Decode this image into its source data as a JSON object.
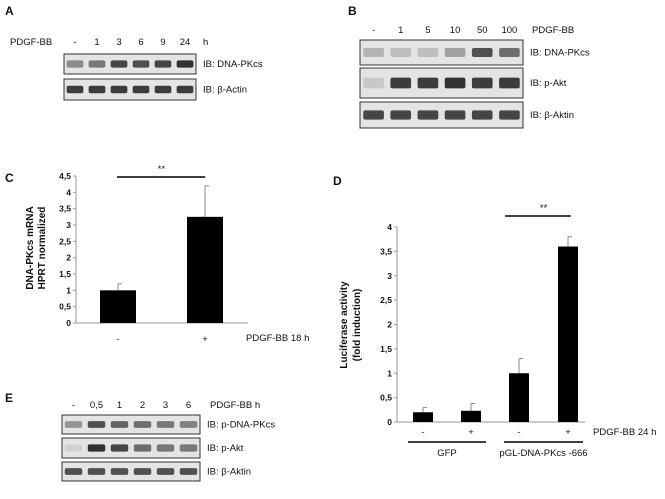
{
  "panels": {
    "A": {
      "label": "A",
      "treatment": "PDGF-BB",
      "unit": "h",
      "lanes": [
        "-",
        "1",
        "3",
        "6",
        "9",
        "24"
      ],
      "blots": [
        {
          "label": "IB: DNA-PKcs",
          "bands": [
            0.45,
            0.55,
            0.8,
            0.75,
            0.8,
            0.9
          ]
        },
        {
          "label": "IB: β-Actin",
          "bands": [
            0.85,
            0.85,
            0.85,
            0.85,
            0.85,
            0.85
          ]
        }
      ]
    },
    "B": {
      "label": "B",
      "treatment": "PDGF-BB",
      "lanes": [
        "-",
        "1",
        "5",
        "10",
        "50",
        "100"
      ],
      "blots": [
        {
          "label": "IB: DNA-PKcs",
          "bands": [
            0.25,
            0.2,
            0.2,
            0.35,
            0.75,
            0.6
          ]
        },
        {
          "label": "IB: p-Akt",
          "bands": [
            0.15,
            0.85,
            0.85,
            0.9,
            0.85,
            0.85
          ]
        },
        {
          "label": "IB: β-Aktin",
          "bands": [
            0.8,
            0.8,
            0.8,
            0.8,
            0.8,
            0.8
          ]
        }
      ]
    },
    "E": {
      "label": "E",
      "treatment": "PDGF-BB h",
      "lanes": [
        "-",
        "0,5",
        "1",
        "2",
        "3",
        "6"
      ],
      "blots": [
        {
          "label": "IB: p-DNA-PKcs",
          "bands": [
            0.4,
            0.75,
            0.65,
            0.6,
            0.55,
            0.5
          ]
        },
        {
          "label": "IB: p-Akt",
          "bands": [
            0.1,
            0.9,
            0.8,
            0.6,
            0.55,
            0.55
          ]
        },
        {
          "label": "IB: β-Aktin",
          "bands": [
            0.75,
            0.75,
            0.75,
            0.75,
            0.75,
            0.75
          ]
        }
      ]
    }
  },
  "chart_data": [
    {
      "panel": "C",
      "type": "bar",
      "ylabel": "DNA-PKcs mRNA HPRT normalized",
      "ylabel_lines": [
        "DNA-PKcs mRNA",
        "HPRT normalized"
      ],
      "xlabel": "PDGF-BB 18 h",
      "categories": [
        "-",
        "+"
      ],
      "values": [
        1.0,
        3.25
      ],
      "errors": [
        0.2,
        0.95
      ],
      "ylim": [
        0,
        4.5
      ],
      "yticks": [
        "0",
        "0,5",
        "1",
        "1,5",
        "2",
        "2,5",
        "3",
        "3,5",
        "4",
        "4,5"
      ],
      "significance": {
        "between": [
          0,
          1
        ],
        "label": "**"
      },
      "bar_color": "#000000"
    },
    {
      "panel": "D",
      "type": "bar",
      "ylabel": "Luciferase activity (fold induction)",
      "ylabel_lines": [
        "Luciferase activity",
        "(fold induction)"
      ],
      "xlabel": "PDGF-BB 24 h",
      "categories": [
        "-",
        "+",
        "-",
        "+"
      ],
      "groups": [
        {
          "label": "GFP",
          "indices": [
            0,
            1
          ]
        },
        {
          "label": "pGL-DNA-PKcs -666",
          "indices": [
            2,
            3
          ]
        }
      ],
      "values": [
        0.2,
        0.23,
        1.0,
        3.6
      ],
      "errors": [
        0.1,
        0.15,
        0.3,
        0.2
      ],
      "ylim": [
        0,
        4
      ],
      "yticks": [
        "0",
        "0,5",
        "1",
        "1,5",
        "2",
        "2,5",
        "3",
        "3,5",
        "4"
      ],
      "significance": {
        "between": [
          2,
          3
        ],
        "label": "**"
      },
      "bar_color": "#000000"
    }
  ]
}
